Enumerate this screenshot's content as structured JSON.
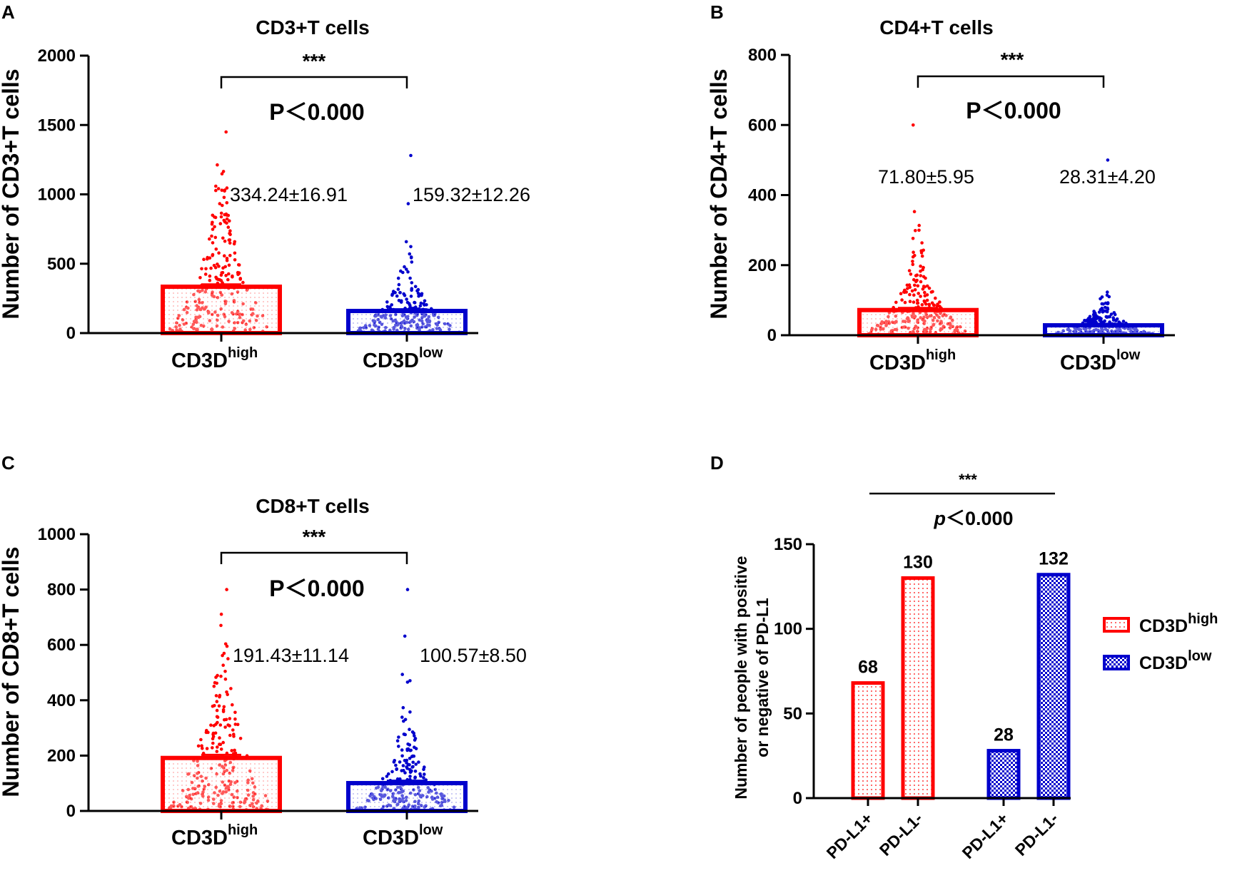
{
  "colors": {
    "high": "#ff0000",
    "low": "#0000cc",
    "axis": "#000000"
  },
  "panels": [
    {
      "letter": "A",
      "title": "CD3+T cells",
      "ylabel": "Number of CD3+T cells",
      "significance": "***",
      "pvalue": "P＜0.000",
      "categories": [
        {
          "base": "CD3D",
          "sup": "high"
        },
        {
          "base": "CD3D",
          "sup": "low"
        }
      ],
      "stats": [
        "334.24±16.91",
        "159.32±12.26"
      ],
      "ticks": [
        "0",
        "500",
        "1000",
        "1500",
        "2000"
      ]
    },
    {
      "letter": "B",
      "title": "CD4+T cells",
      "ylabel": "Number of CD4+T cells",
      "significance": "***",
      "pvalue": "P＜0.000",
      "categories": [
        {
          "base": "CD3D",
          "sup": "high"
        },
        {
          "base": "CD3D",
          "sup": "low"
        }
      ],
      "stats": [
        "71.80±5.95",
        "28.31±4.20"
      ],
      "ticks": [
        "0",
        "200",
        "400",
        "600",
        "800"
      ]
    },
    {
      "letter": "C",
      "title": "CD8+T cells",
      "ylabel": "Number of CD8+T cells",
      "significance": "***",
      "pvalue": "P＜0.000",
      "categories": [
        {
          "base": "CD3D",
          "sup": "high"
        },
        {
          "base": "CD3D",
          "sup": "low"
        }
      ],
      "stats": [
        "191.43±11.14",
        "100.57±8.50"
      ],
      "ticks": [
        "0",
        "200",
        "400",
        "600",
        "800",
        "1000"
      ]
    },
    {
      "letter": "D",
      "ylabel_line1": "Number of people with positive",
      "ylabel_line2": "or negative of PD-L1",
      "significance": "***",
      "pvalue_p": "p",
      "pvalue_rest": "＜0.000",
      "categories": [
        "PD-L1+",
        "PD-L1-",
        "PD-L1+",
        "PD-L1-"
      ],
      "value_labels": [
        "68",
        "130",
        "28",
        "132"
      ],
      "ticks": [
        "0",
        "50",
        "100",
        "150"
      ],
      "legend": [
        {
          "base": "CD3D",
          "sup": "high"
        },
        {
          "base": "CD3D",
          "sup": "low"
        }
      ]
    }
  ],
  "chart_data": [
    {
      "type": "bar",
      "title": "CD3+T cells",
      "ylabel": "Number of CD3+T cells",
      "categories": [
        "CD3D high",
        "CD3D low"
      ],
      "values": [
        334.24,
        159.32
      ],
      "errors": [
        16.91,
        12.26
      ],
      "ylim": [
        0,
        2000
      ],
      "yticks": [
        0,
        500,
        1000,
        1500,
        2000
      ],
      "scatter_max": [
        1450,
        1280
      ],
      "grid": false
    },
    {
      "type": "bar",
      "title": "CD4+T cells",
      "ylabel": "Number of CD4+T cells",
      "categories": [
        "CD3D high",
        "CD3D low"
      ],
      "values": [
        71.8,
        28.31
      ],
      "errors": [
        5.95,
        4.2
      ],
      "ylim": [
        0,
        800
      ],
      "yticks": [
        0,
        200,
        400,
        600,
        800
      ],
      "scatter_max": [
        600,
        500
      ],
      "grid": false
    },
    {
      "type": "bar",
      "title": "CD8+T cells",
      "ylabel": "Number of CD8+T cells",
      "categories": [
        "CD3D high",
        "CD3D low"
      ],
      "values": [
        191.43,
        100.57
      ],
      "errors": [
        11.14,
        8.5
      ],
      "ylim": [
        0,
        1000
      ],
      "yticks": [
        0,
        200,
        400,
        600,
        800,
        1000
      ],
      "scatter_max": [
        800,
        800
      ],
      "grid": false
    },
    {
      "type": "bar",
      "title": "",
      "ylabel": "Number of people with positive or negative of PD-L1",
      "categories": [
        "PD-L1+",
        "PD-L1-"
      ],
      "series": [
        {
          "name": "CD3D high",
          "values": [
            68,
            130
          ]
        },
        {
          "name": "CD3D low",
          "values": [
            28,
            132
          ]
        }
      ],
      "ylim": [
        0,
        150
      ],
      "yticks": [
        0,
        50,
        100,
        150
      ],
      "legend": "right",
      "grid": false
    }
  ]
}
